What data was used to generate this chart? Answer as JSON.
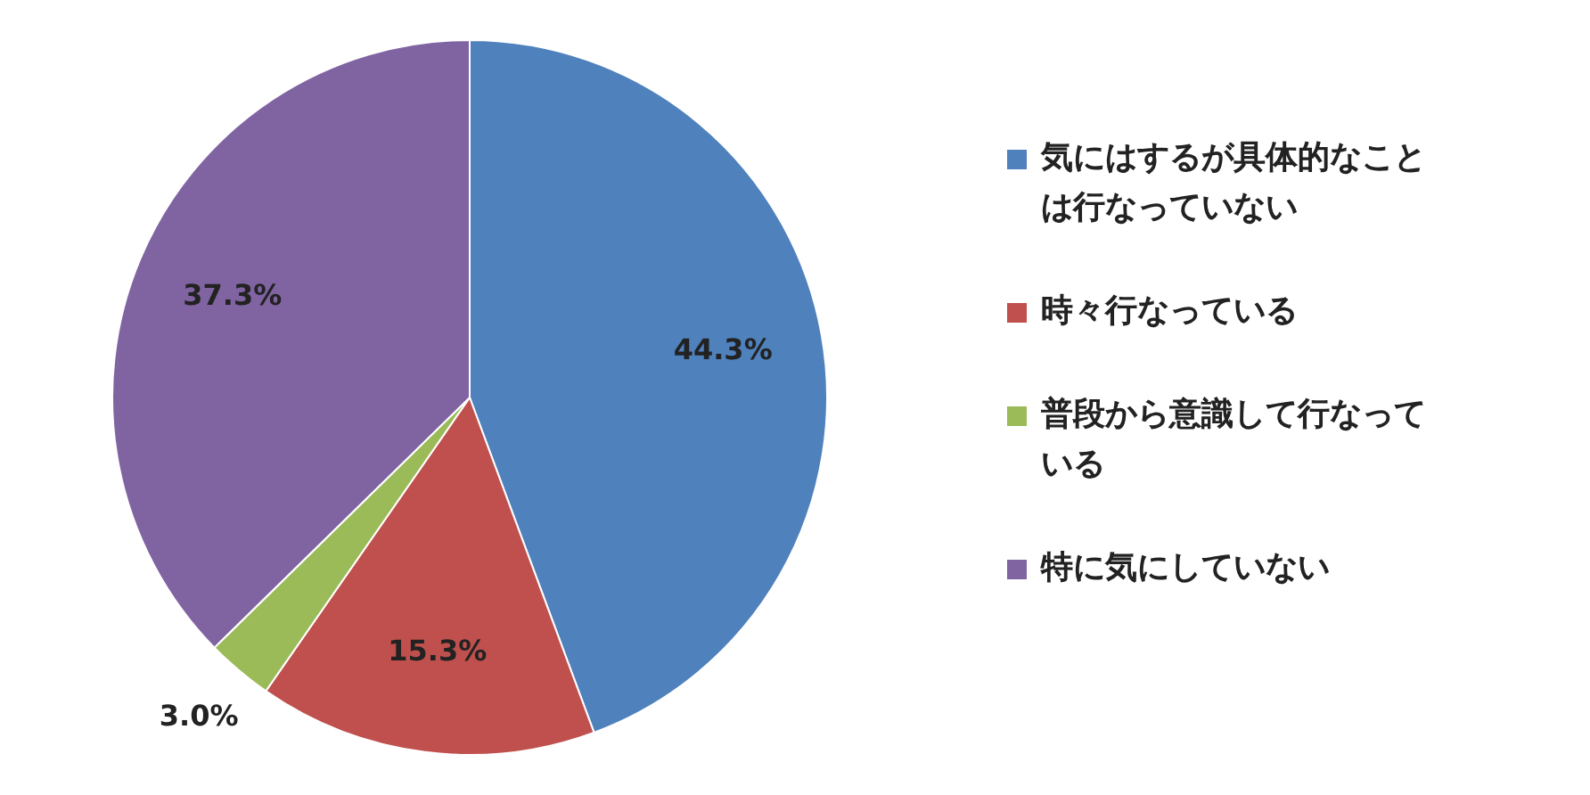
{
  "chart_data": {
    "type": "pie",
    "categories": [
      "気にはするが具体的なことは行なっていない",
      "時々行なっている",
      "普段から意識して行なっている",
      "特に気にしていない"
    ],
    "values": [
      44.3,
      15.3,
      3.0,
      37.3
    ],
    "colors": [
      "#4f81bd",
      "#c0504d",
      "#9bbb59",
      "#8064a2"
    ],
    "value_labels": [
      "44.3%",
      "15.3%",
      "3.0%",
      "37.3%"
    ],
    "legend": "right"
  }
}
